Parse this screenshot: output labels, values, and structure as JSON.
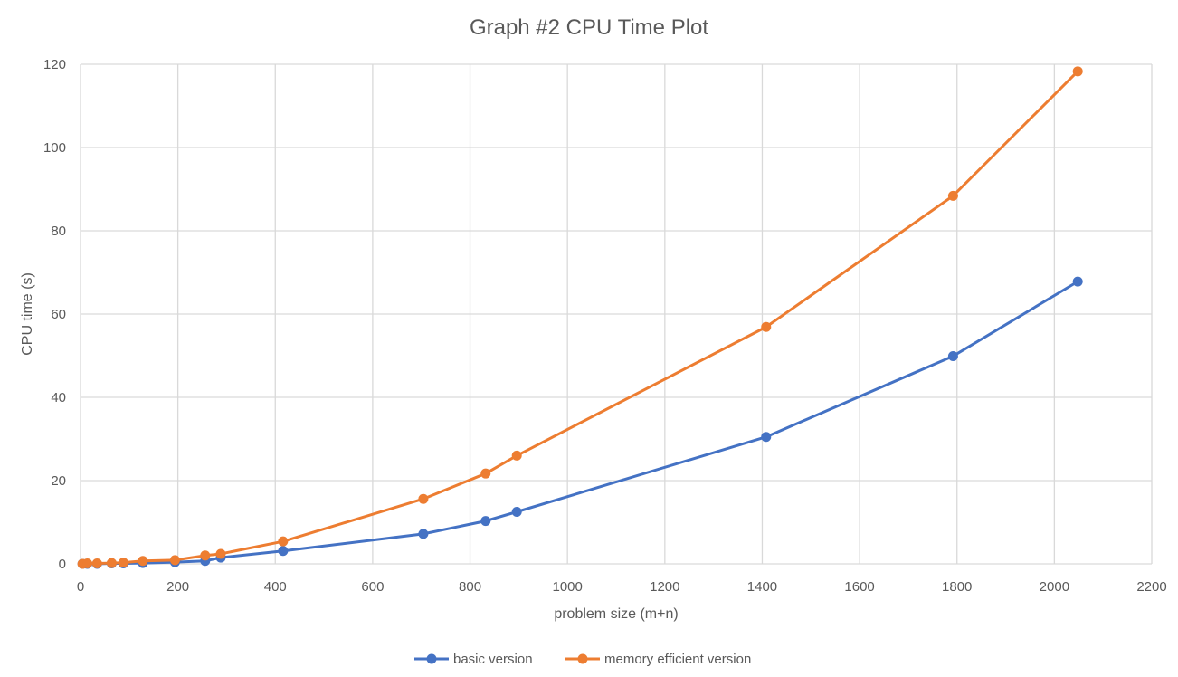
{
  "chart_data": {
    "type": "line",
    "title": "Graph #2 CPU Time Plot",
    "xlabel": "problem size (m+n)",
    "ylabel": "CPU time (s)",
    "xlim": [
      0,
      2200
    ],
    "ylim": [
      0,
      120
    ],
    "x_ticks": [
      0,
      200,
      400,
      600,
      800,
      1000,
      1200,
      1400,
      1600,
      1800,
      2000,
      2200
    ],
    "y_ticks": [
      0,
      20,
      40,
      60,
      80,
      100,
      120
    ],
    "grid": true,
    "legend_position": "bottom",
    "series": [
      {
        "name": "basic version",
        "color": "#4472C4",
        "points": [
          [
            4,
            0.0
          ],
          [
            14,
            0.0
          ],
          [
            34,
            0.0
          ],
          [
            64,
            0.1
          ],
          [
            88,
            0.1
          ],
          [
            128,
            0.2
          ],
          [
            194,
            0.4
          ],
          [
            256,
            0.7
          ],
          [
            288,
            1.5
          ],
          [
            416,
            3.1
          ],
          [
            704,
            7.2
          ],
          [
            832,
            10.3
          ],
          [
            896,
            12.5
          ],
          [
            1408,
            30.5
          ],
          [
            1792,
            49.9
          ],
          [
            2048,
            67.8
          ]
        ]
      },
      {
        "name": "memory efficient version",
        "color": "#ED7D31",
        "points": [
          [
            4,
            0.0
          ],
          [
            14,
            0.1
          ],
          [
            34,
            0.1
          ],
          [
            64,
            0.2
          ],
          [
            88,
            0.3
          ],
          [
            128,
            0.7
          ],
          [
            194,
            0.9
          ],
          [
            256,
            2.0
          ],
          [
            288,
            2.4
          ],
          [
            416,
            5.4
          ],
          [
            704,
            15.6
          ],
          [
            832,
            21.7
          ],
          [
            896,
            26.0
          ],
          [
            1408,
            56.9
          ],
          [
            1792,
            88.4
          ],
          [
            2048,
            118.3
          ]
        ]
      }
    ]
  }
}
